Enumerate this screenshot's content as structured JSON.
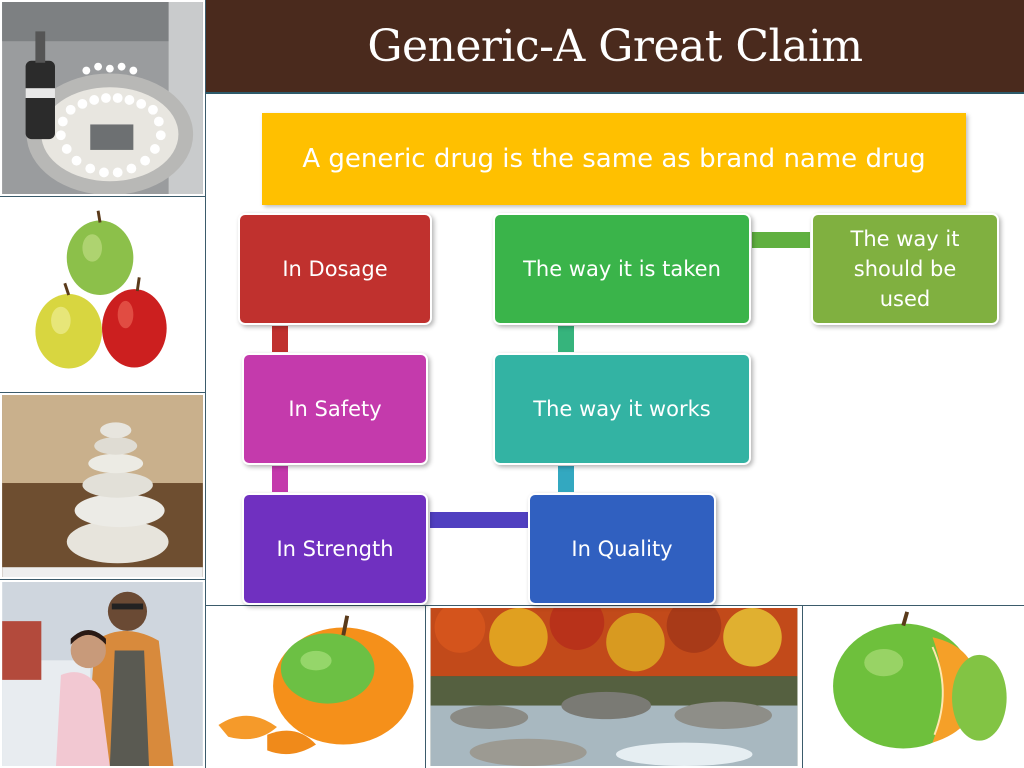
{
  "title": "Generic-A Great Claim",
  "banner": "A generic drug is the same as brand name drug",
  "nodes": {
    "dosage": {
      "label": "In Dosage",
      "color": "#c0312e"
    },
    "safety": {
      "label": "In Safety",
      "color": "#c43aac"
    },
    "strength": {
      "label": "In Strength",
      "color": "#7030c0"
    },
    "quality": {
      "label": "In Quality",
      "color": "#3060c0"
    },
    "works": {
      "label": "The way it works",
      "color": "#33b3a3"
    },
    "taken": {
      "label": "The way it is taken",
      "color": "#3ab44a"
    },
    "used": {
      "label": "The way it should be used",
      "color": "#80b040"
    }
  },
  "colors": {
    "title_bg": "#4a2a1d",
    "banner_bg": "#ffc000"
  },
  "images": {
    "left": [
      "pill-machine-photo",
      "apples-photo",
      "stacked-stones-photo",
      "father-child-photo"
    ],
    "bottom": [
      "orange-apple-photo",
      "autumn-river-photo",
      "apple-orange-photo"
    ]
  }
}
